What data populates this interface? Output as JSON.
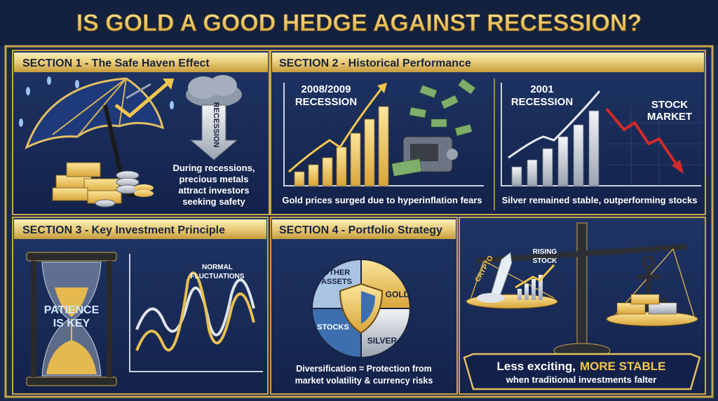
{
  "title": "IS GOLD A GOOD HEDGE AGAINST RECESSION?",
  "section1": {
    "header": "SECTION 1 - The Safe Haven Effect",
    "arrow_label": "RECESSION",
    "caption": [
      "During recessions,",
      "precious metals",
      "attract investors",
      "seeking safety"
    ]
  },
  "section2": {
    "header": "SECTION 2 - Historical Performance",
    "left": {
      "label": [
        "2008/2009",
        "RECESSION"
      ],
      "caption": "Gold prices surged due to hyperinflation fears"
    },
    "right": {
      "label": [
        "2001",
        "RECESSION"
      ],
      "stock_label": [
        "STOCK",
        "MARKET"
      ],
      "caption": "Silver remained stable, outperforming stocks"
    }
  },
  "section3": {
    "header": "SECTION 3 - Key Investment Principle",
    "hourglass_label": [
      "PATIENCE",
      "IS KEY"
    ],
    "chart_label": [
      "NORMAL",
      "FLUCTUATIONS"
    ]
  },
  "section4": {
    "header": "SECTION 4 - Portfolio Strategy",
    "other_assets": [
      "OTHER",
      "ASSETS"
    ],
    "gold": "GOLD",
    "stocks": "STOCKS",
    "silver": "SILVER",
    "caption": [
      "Diversification = Protection from",
      "market volatility & currency risks"
    ]
  },
  "scale_panel": {
    "crypto": "CRYPTO",
    "rising_stock": [
      "RISING",
      "STOCK"
    ],
    "banner": {
      "plain": "Less exciting,",
      "highlight": "MORE STABLE",
      "subtitle": "when traditional investments falter"
    }
  }
}
